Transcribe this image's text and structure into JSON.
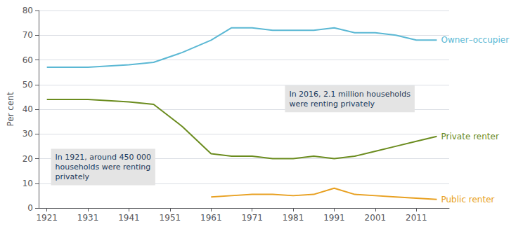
{
  "chart_data": {
    "type": "line",
    "x": [
      1921,
      1931,
      1941,
      1947,
      1954,
      1961,
      1966,
      1971,
      1976,
      1981,
      1986,
      1991,
      1996,
      2001,
      2006,
      2011,
      2016
    ],
    "series": [
      {
        "name": "Owner–occupier",
        "color": "#5BB8D4",
        "values": [
          57,
          57,
          58,
          59,
          63,
          68,
          73,
          73,
          72,
          72,
          72,
          73,
          71,
          71,
          70,
          68,
          68
        ]
      },
      {
        "name": "Private renter",
        "color": "#6B8C1F",
        "values": [
          44,
          44,
          43,
          42,
          33,
          22,
          21,
          21,
          20,
          20,
          21,
          20,
          21,
          23,
          25,
          27,
          29
        ]
      },
      {
        "name": "Public renter",
        "color": "#E8A020",
        "values": [
          null,
          null,
          null,
          null,
          null,
          4.5,
          5.0,
          5.5,
          5.5,
          5.0,
          5.5,
          8,
          5.5,
          5.0,
          4.5,
          4.0,
          3.5
        ]
      }
    ],
    "ylabel": "Per cent",
    "xlim": [
      1919,
      2019
    ],
    "xticks": [
      1921,
      1931,
      1941,
      1951,
      1961,
      1971,
      1981,
      1991,
      2001,
      2011
    ],
    "ylim": [
      0,
      80
    ],
    "yticks": [
      0,
      10,
      20,
      30,
      40,
      50,
      60,
      70,
      80
    ],
    "grid": true,
    "annotations": [
      "In 1921, around 450 000\nhouseholds were renting\nprivately",
      "In 2016, 2.1 million households\nwere renting privately"
    ]
  }
}
